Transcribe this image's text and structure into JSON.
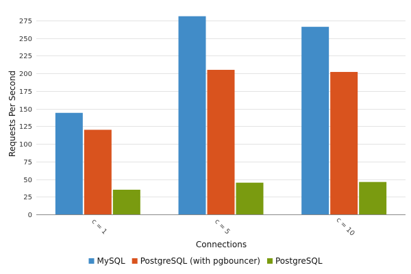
{
  "chart_data": {
    "type": "bar",
    "title": "",
    "xlabel": "Connections",
    "ylabel": "Requests Per Second",
    "categories": [
      "c = 1",
      "c = 5",
      "c = 10"
    ],
    "series": [
      {
        "name": "MySQL",
        "color": "#418cc8",
        "values": [
          144,
          281,
          266
        ]
      },
      {
        "name": "PostgreSQL (with pgbouncer)",
        "color": "#d9531e",
        "values": [
          120,
          205,
          202
        ]
      },
      {
        "name": "PostgreSQL",
        "color": "#7a9b10",
        "values": [
          35,
          45,
          46
        ]
      }
    ],
    "ylim": [
      0,
      287.5
    ],
    "yticks": [
      0,
      25,
      50,
      75,
      100,
      125,
      150,
      175,
      200,
      225,
      250,
      275
    ],
    "grid": true,
    "legend_position": "bottom"
  }
}
